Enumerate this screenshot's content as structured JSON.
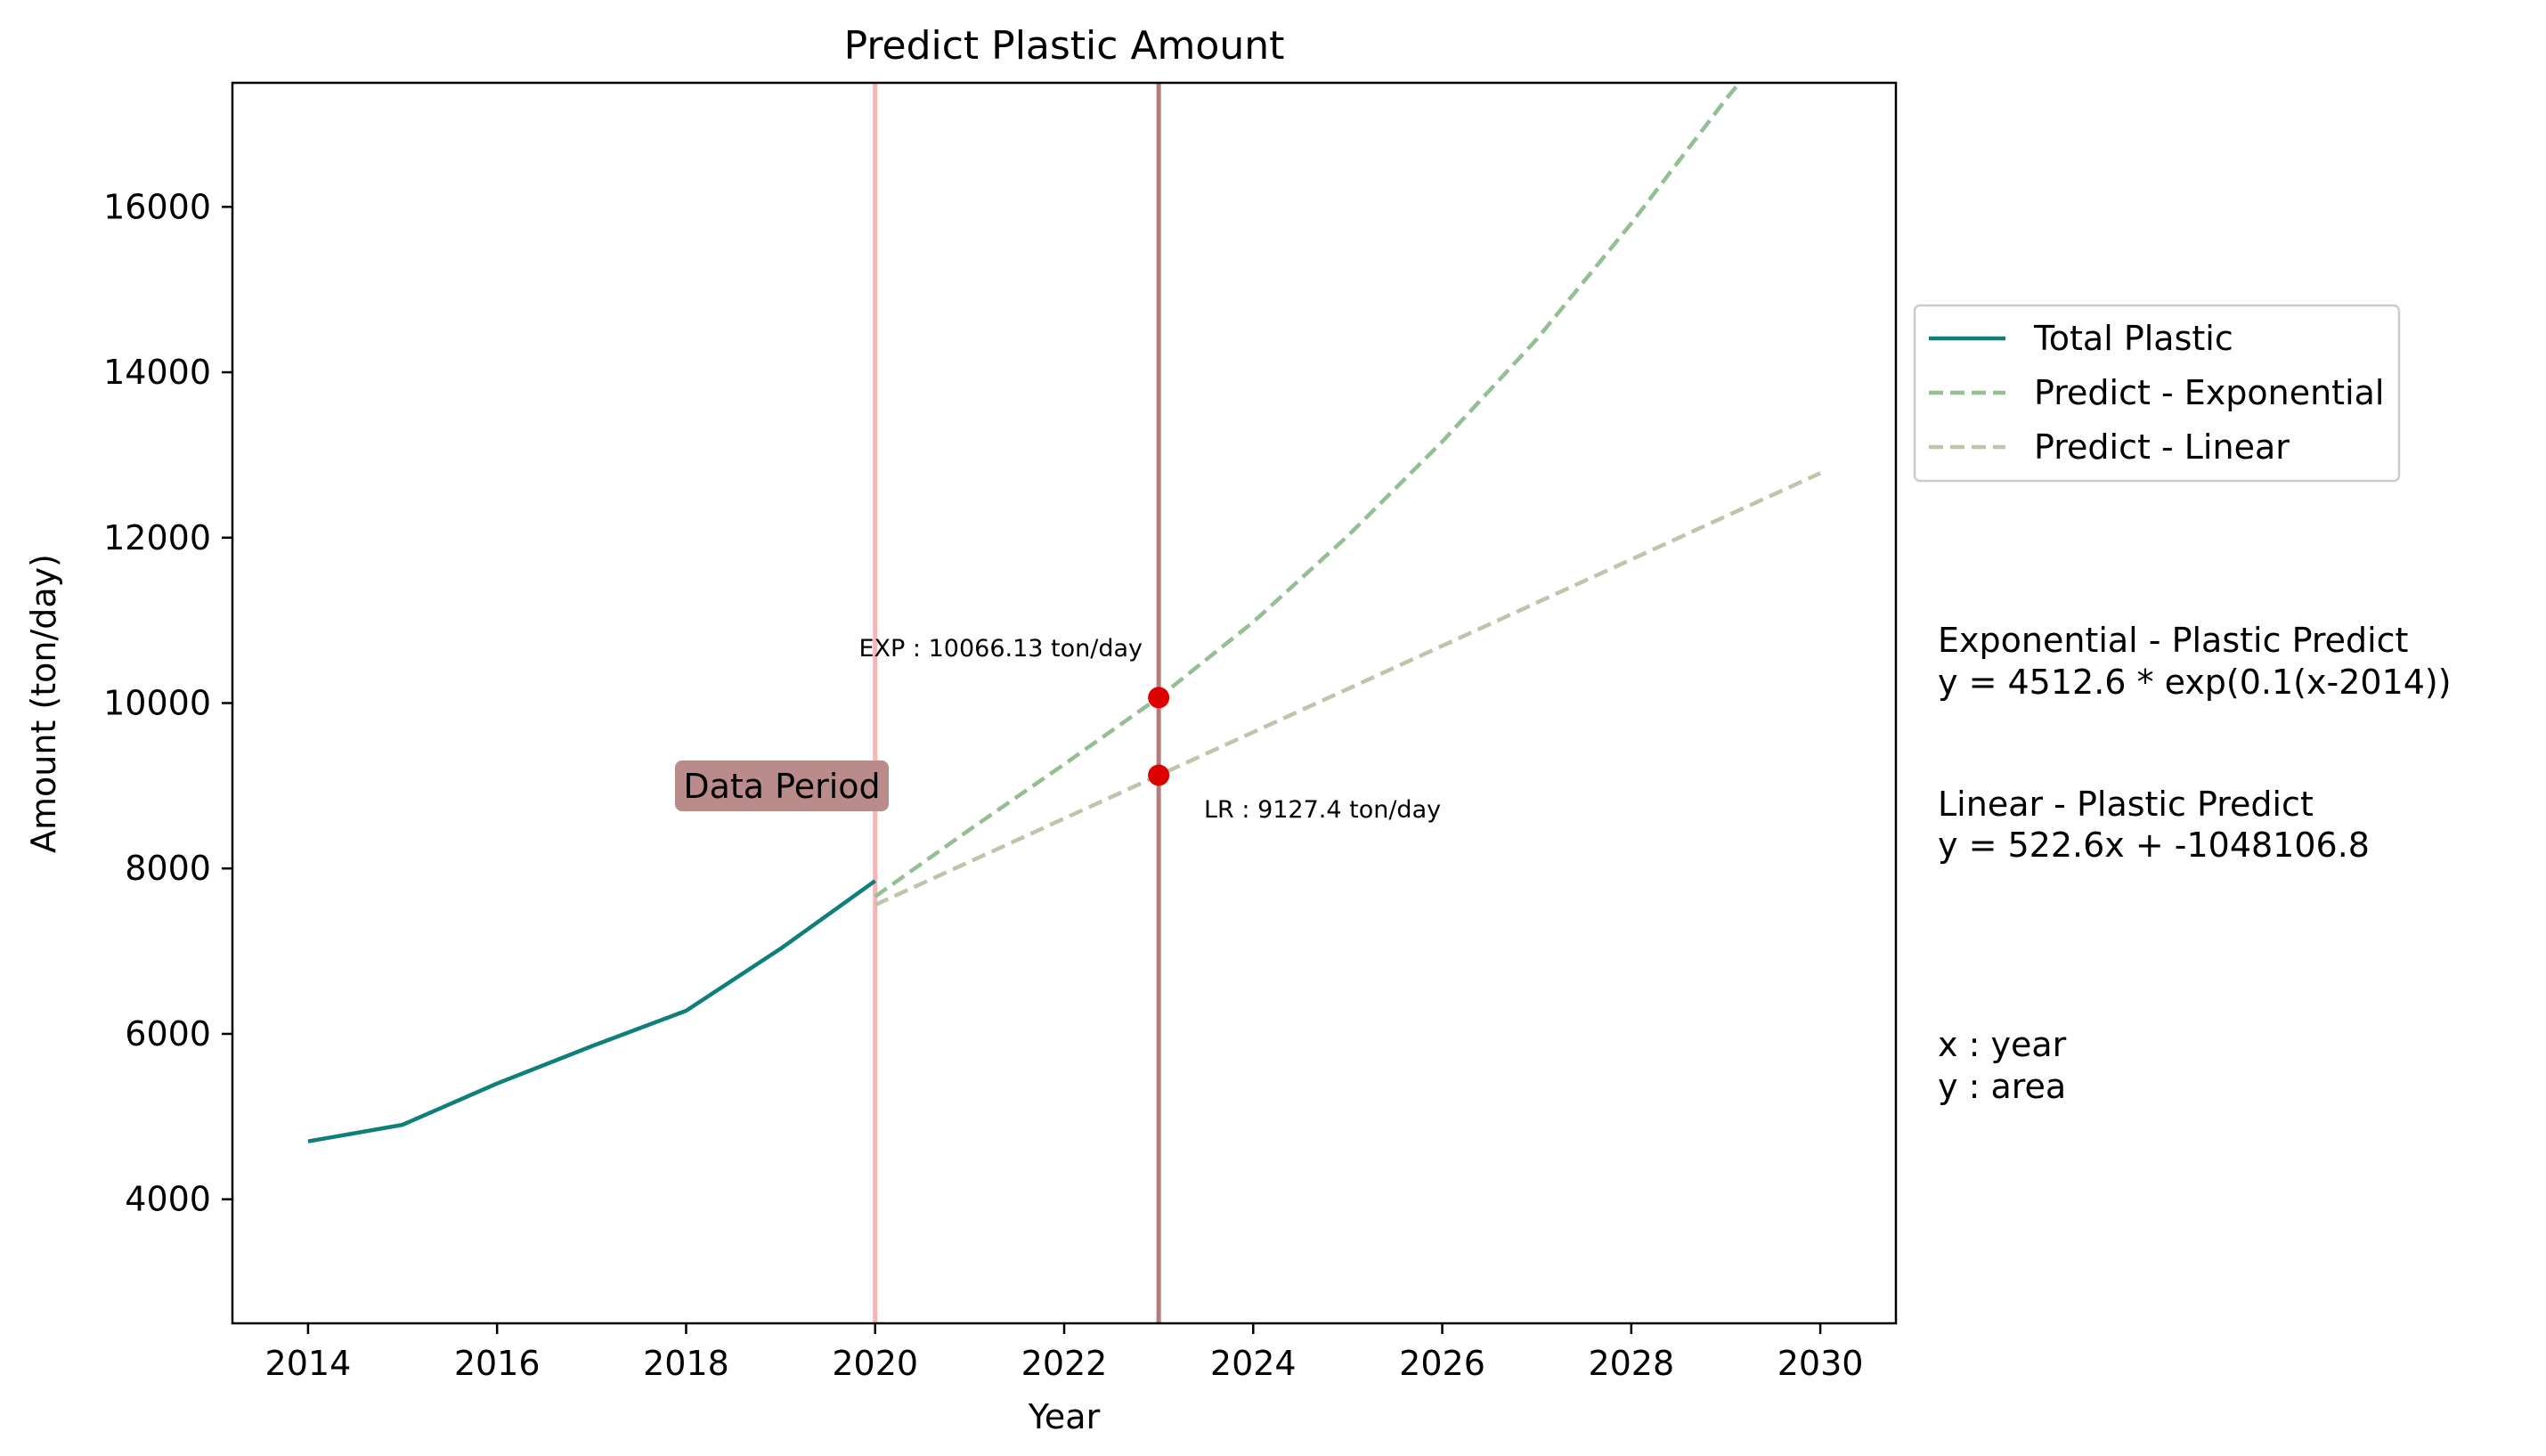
{
  "chart_data": {
    "type": "line",
    "title": "Predict Plastic Amount",
    "xlabel": "Year",
    "ylabel": "Amount (ton/day)",
    "xlim": [
      2013.2,
      2030.8
    ],
    "ylim": [
      2500,
      17500
    ],
    "xticks": [
      2014,
      2016,
      2018,
      2020,
      2022,
      2024,
      2026,
      2028,
      2030
    ],
    "yticks": [
      4000,
      6000,
      8000,
      10000,
      12000,
      14000,
      16000
    ],
    "grid": false,
    "legend_position": "right, outside plot",
    "series": [
      {
        "name": "Total Plastic",
        "style": "solid",
        "color": "#0e7f7a",
        "x": [
          2014,
          2015,
          2016,
          2017,
          2018,
          2019,
          2020
        ],
        "y": [
          4700,
          4900,
          5400,
          5850,
          6280,
          7030,
          7850
        ]
      },
      {
        "name": "Predict - Exponential",
        "style": "dashed",
        "color": "#93bf93",
        "x": [
          2020,
          2021,
          2022,
          2023,
          2024,
          2025,
          2026,
          2027,
          2028,
          2029,
          2030
        ],
        "y": [
          7660,
          8470,
          9260,
          10066,
          10980,
          12020,
          13160,
          14400,
          15800,
          17300,
          18700
        ]
      },
      {
        "name": "Predict - Linear",
        "style": "dashed",
        "color": "#bbc6aa",
        "x": [
          2020,
          2030
        ],
        "y": [
          7560,
          12780
        ]
      }
    ],
    "vlines": [
      {
        "x": 2020,
        "color": "#f4b6b6"
      },
      {
        "x": 2023,
        "color": "#b47c7c"
      }
    ],
    "points": [
      {
        "x": 2023,
        "y": 10066.13,
        "color": "#dd0000"
      },
      {
        "x": 2023,
        "y": 9127.4,
        "color": "#dd0000"
      }
    ],
    "annotations": {
      "exp_point": "EXP : 10066.13 ton/day",
      "lr_point": "LR : 9127.4 ton/day",
      "data_period": "Data Period"
    },
    "side_text": {
      "exp_title": "Exponential -  Plastic Predict",
      "exp_formula": "y = 4512.6 * exp(0.1(x-2014))",
      "lin_title": "Linear -  Plastic Predict",
      "lin_formula": "y = 522.6x + -1048106.8",
      "x_desc": "x : year",
      "y_desc": "y : area"
    },
    "colors": {
      "data_period_box": "#b98b8b"
    }
  }
}
